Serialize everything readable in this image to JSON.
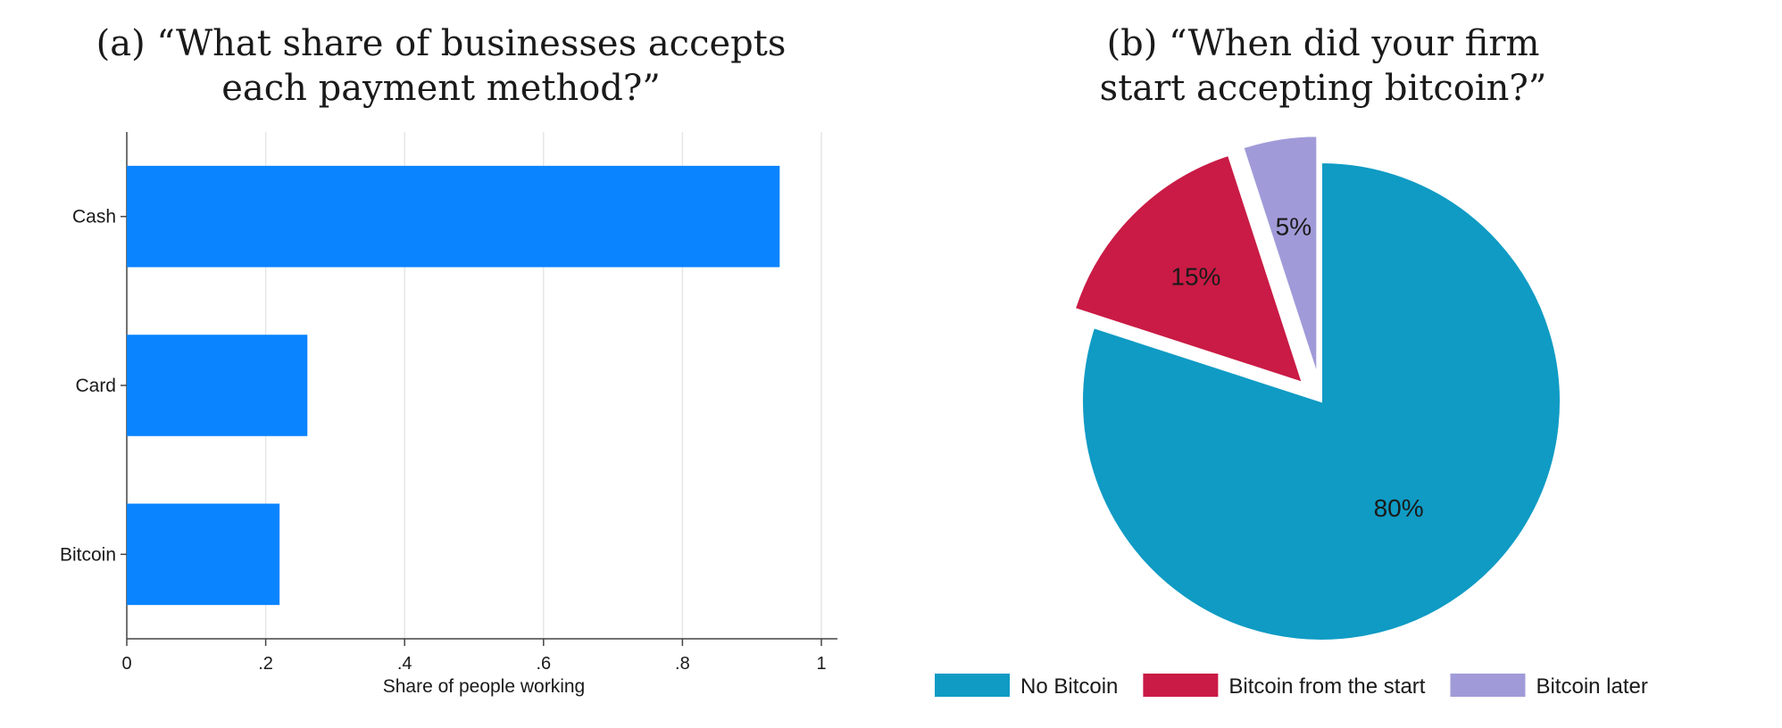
{
  "chart_data": [
    {
      "type": "bar",
      "orientation": "horizontal",
      "title_lines": [
        "(a) “What share of businesses accepts",
        "each payment method?”"
      ],
      "categories": [
        "Cash",
        "Card",
        "Bitcoin"
      ],
      "values": [
        0.94,
        0.26,
        0.22
      ],
      "xlabel": "Share of people working",
      "ylabel": "",
      "xlim": [
        0,
        1
      ],
      "xticks": [
        0,
        0.2,
        0.4,
        0.6,
        0.8,
        1
      ],
      "xtick_labels": [
        "0",
        ".2",
        ".4",
        ".6",
        ".8",
        "1"
      ],
      "grid": "vertical",
      "bar_color": "#0a84ff"
    },
    {
      "type": "pie",
      "title_lines": [
        "(b) “When did your firm",
        "start accepting bitcoin?”"
      ],
      "slices": [
        {
          "label": "No Bitcoin",
          "value": 80,
          "value_label": "80%",
          "color": "#0f9bc4"
        },
        {
          "label": "Bitcoin from the start",
          "value": 15,
          "value_label": "15%",
          "color": "#c91b45"
        },
        {
          "label": "Bitcoin later",
          "value": 5,
          "value_label": "5%",
          "color": "#a09bd8"
        }
      ],
      "exploded": [
        "Bitcoin from the start",
        "Bitcoin later"
      ],
      "legend_position": "bottom"
    }
  ]
}
